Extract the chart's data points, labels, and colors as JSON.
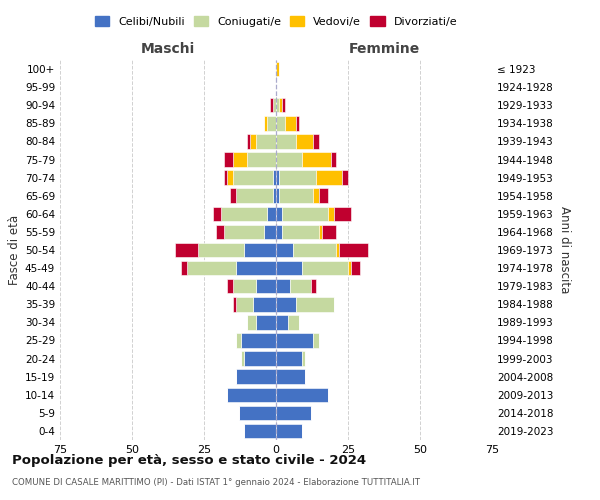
{
  "age_groups": [
    "0-4",
    "5-9",
    "10-14",
    "15-19",
    "20-24",
    "25-29",
    "30-34",
    "35-39",
    "40-44",
    "45-49",
    "50-54",
    "55-59",
    "60-64",
    "65-69",
    "70-74",
    "75-79",
    "80-84",
    "85-89",
    "90-94",
    "95-99",
    "100+"
  ],
  "birth_years": [
    "2019-2023",
    "2014-2018",
    "2009-2013",
    "2004-2008",
    "1999-2003",
    "1994-1998",
    "1989-1993",
    "1984-1988",
    "1979-1983",
    "1974-1978",
    "1969-1973",
    "1964-1968",
    "1959-1963",
    "1954-1958",
    "1949-1953",
    "1944-1948",
    "1939-1943",
    "1934-1938",
    "1929-1933",
    "1924-1928",
    "≤ 1923"
  ],
  "male": {
    "celibi": [
      11,
      13,
      17,
      14,
      11,
      12,
      7,
      8,
      7,
      14,
      11,
      4,
      3,
      1,
      1,
      0,
      0,
      0,
      0,
      0,
      0
    ],
    "coniugati": [
      0,
      0,
      0,
      0,
      1,
      2,
      3,
      6,
      8,
      17,
      16,
      14,
      16,
      13,
      14,
      10,
      7,
      3,
      1,
      0,
      0
    ],
    "vedovi": [
      0,
      0,
      0,
      0,
      0,
      0,
      0,
      0,
      0,
      0,
      0,
      0,
      0,
      0,
      2,
      5,
      2,
      1,
      0,
      0,
      0
    ],
    "divorziati": [
      0,
      0,
      0,
      0,
      0,
      0,
      0,
      1,
      2,
      2,
      8,
      3,
      3,
      2,
      1,
      3,
      1,
      0,
      1,
      0,
      0
    ]
  },
  "female": {
    "nubili": [
      9,
      12,
      18,
      10,
      9,
      13,
      4,
      7,
      5,
      9,
      6,
      2,
      2,
      1,
      1,
      0,
      0,
      0,
      0,
      0,
      0
    ],
    "coniugate": [
      0,
      0,
      0,
      0,
      1,
      2,
      4,
      13,
      7,
      16,
      15,
      13,
      16,
      12,
      13,
      9,
      7,
      3,
      1,
      0,
      0
    ],
    "vedove": [
      0,
      0,
      0,
      0,
      0,
      0,
      0,
      0,
      0,
      1,
      1,
      1,
      2,
      2,
      9,
      10,
      6,
      4,
      1,
      0,
      1
    ],
    "divorziate": [
      0,
      0,
      0,
      0,
      0,
      0,
      0,
      0,
      2,
      3,
      10,
      5,
      6,
      3,
      2,
      2,
      2,
      1,
      1,
      0,
      0
    ]
  },
  "color_celibi": "#4472c4",
  "color_coniugati": "#c5d9a0",
  "color_vedovi": "#ffc000",
  "color_divorziati": "#c0002f",
  "title": "Popolazione per età, sesso e stato civile - 2024",
  "subtitle": "COMUNE DI CASALE MARITTIMO (PI) - Dati ISTAT 1° gennaio 2024 - Elaborazione TUTTITALIA.IT",
  "xlabel_left": "Maschi",
  "xlabel_right": "Femmine",
  "ylabel_left": "Fasce di età",
  "ylabel_right": "Anni di nascita",
  "xlim": 75,
  "bg_color": "#ffffff",
  "grid_color": "#cccccc"
}
